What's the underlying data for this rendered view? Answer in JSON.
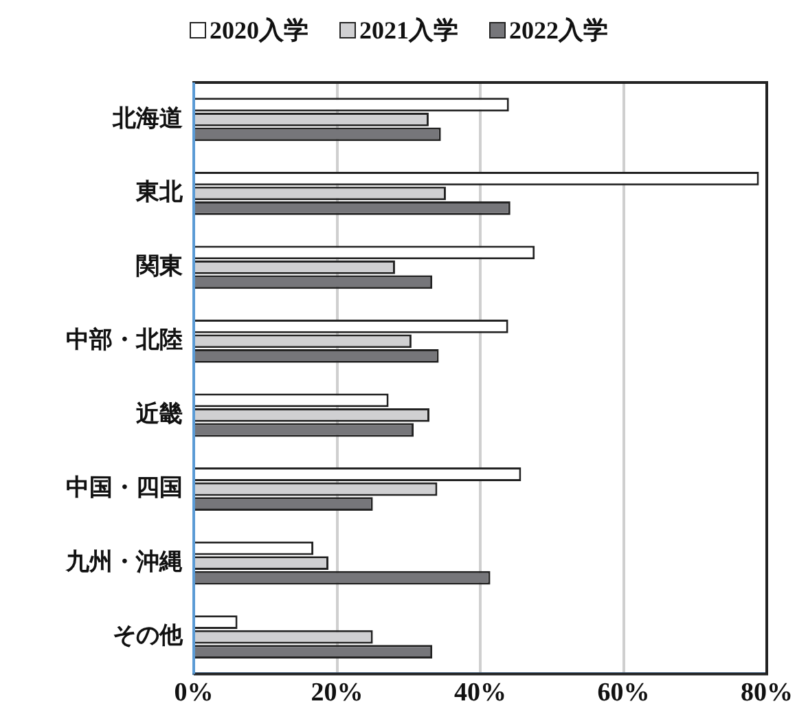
{
  "chart_data": {
    "type": "bar",
    "orientation": "horizontal",
    "categories": [
      "北海道",
      "東北",
      "関東",
      "中部・北陸",
      "近畿",
      "中国・四国",
      "九州・沖縄",
      "その他"
    ],
    "series": [
      {
        "name": "2020入学",
        "color": "#ffffff",
        "values": [
          44.0,
          78.9,
          47.6,
          43.9,
          27.2,
          45.7,
          16.7,
          6.1
        ]
      },
      {
        "name": "2021入学",
        "color": "#d0d0d2",
        "values": [
          32.8,
          35.2,
          28.1,
          30.4,
          32.9,
          34.0,
          18.8,
          25.0
        ]
      },
      {
        "name": "2022入学",
        "color": "#76767a",
        "values": [
          34.5,
          44.2,
          33.3,
          34.2,
          30.7,
          25.0,
          41.4,
          33.3
        ]
      }
    ],
    "xlim": [
      0,
      80
    ],
    "xticks": [
      {
        "value": 0,
        "label": "0%"
      },
      {
        "value": 20,
        "label": "20%"
      },
      {
        "value": 40,
        "label": "40%"
      },
      {
        "value": 60,
        "label": "60%"
      },
      {
        "value": 80,
        "label": "80%"
      }
    ],
    "grid": "x",
    "legend": "top"
  }
}
